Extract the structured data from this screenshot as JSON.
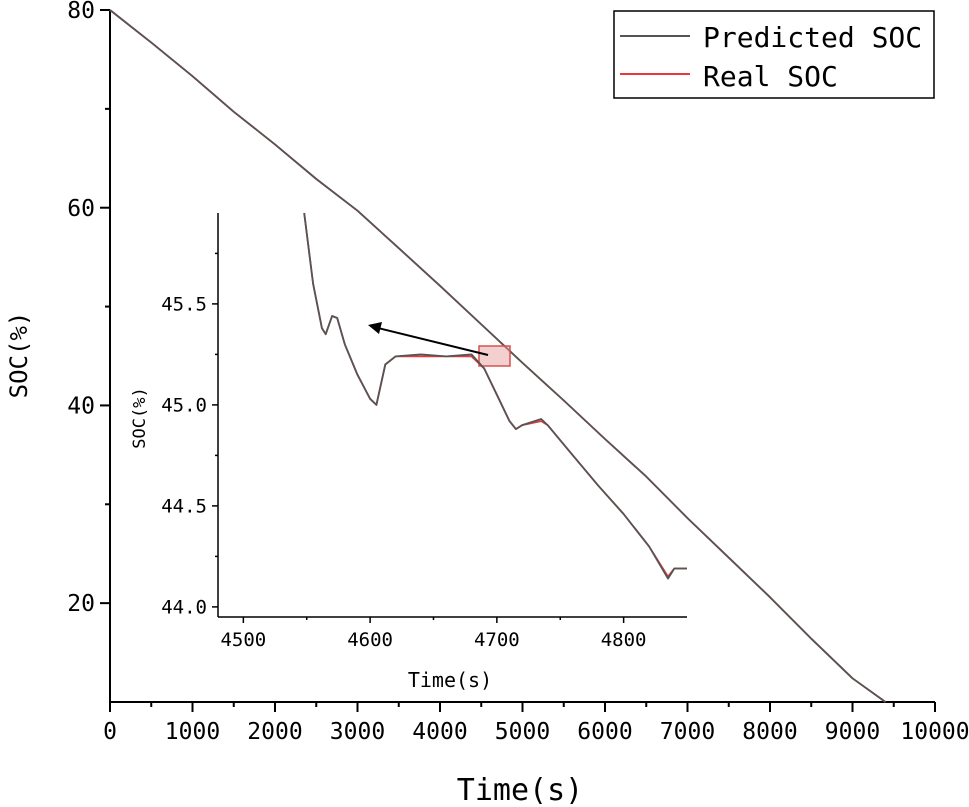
{
  "colors": {
    "predicted": "#555555",
    "real": "#e8393a",
    "axis": "#000000",
    "highlight_fill": "#e8a0a0",
    "highlight_stroke": "#d85050"
  },
  "chart_data": [
    {
      "type": "line",
      "id": "main",
      "xlabel": "Time(s)",
      "ylabel": "SOC(%)",
      "xlim": [
        0,
        10000
      ],
      "ylim": [
        10,
        80
      ],
      "x_ticks": [
        0,
        1000,
        2000,
        3000,
        4000,
        5000,
        6000,
        7000,
        8000,
        9000,
        10000
      ],
      "x_tick_labels": [
        "0",
        "1000",
        "2000",
        "3000",
        "4000",
        "5000",
        "6000",
        "7000",
        "8000",
        "9000",
        "10000"
      ],
      "y_ticks": [
        20,
        40,
        60,
        80
      ],
      "y_tick_labels": [
        "20",
        "40",
        "60",
        "80"
      ],
      "legend": {
        "position": "top-right",
        "entries": [
          "Predicted SOC",
          "Real SOC"
        ]
      },
      "series": [
        {
          "name": "Predicted SOC",
          "x": [
            0,
            500,
            1000,
            1500,
            2000,
            2500,
            3000,
            3500,
            4000,
            4500,
            5000,
            5500,
            6000,
            6500,
            7000,
            7500,
            8000,
            8500,
            9000,
            9400
          ],
          "y": [
            80,
            76.7,
            73.3,
            69.7,
            66.4,
            62.9,
            59.7,
            55.9,
            52.1,
            48.2,
            44.3,
            40.5,
            36.6,
            32.8,
            28.6,
            24.6,
            20.6,
            16.4,
            12.4,
            10
          ]
        },
        {
          "name": "Real SOC",
          "x": [
            0,
            500,
            1000,
            1500,
            2000,
            2500,
            3000,
            3500,
            4000,
            4500,
            5000,
            5500,
            6000,
            6500,
            7000,
            7500,
            8000,
            8500,
            9000,
            9400
          ],
          "y": [
            80,
            76.7,
            73.3,
            69.7,
            66.4,
            62.9,
            59.7,
            55.9,
            52.1,
            48.2,
            44.3,
            40.5,
            36.6,
            32.8,
            28.6,
            24.6,
            20.6,
            16.4,
            12.4,
            10
          ]
        }
      ],
      "zoom_region": {
        "x": [
          4450,
          4850
        ],
        "y": [
          44.1,
          45.3
        ]
      }
    },
    {
      "type": "line",
      "id": "inset",
      "xlabel": "Time(s)",
      "ylabel": "SOC(%)",
      "xlim": [
        4480,
        4850
      ],
      "ylim": [
        43.95,
        45.95
      ],
      "x_ticks": [
        4500,
        4600,
        4700,
        4800
      ],
      "x_tick_labels": [
        "4500",
        "4600",
        "4700",
        "4800"
      ],
      "y_ticks": [
        44.0,
        44.5,
        45.0,
        45.5
      ],
      "y_tick_labels": [
        "44.0",
        "44.5",
        "45.0",
        "45.5"
      ],
      "series": [
        {
          "name": "Predicted SOC",
          "x": [
            4548,
            4555,
            4562,
            4565,
            4570,
            4574,
            4580,
            4590,
            4600,
            4605,
            4612,
            4620,
            4640,
            4660,
            4680,
            4690,
            4700,
            4710,
            4715,
            4720,
            4735,
            4740,
            4760,
            4780,
            4800,
            4820,
            4835,
            4840,
            4850
          ],
          "y": [
            45.95,
            45.6,
            45.38,
            45.35,
            45.44,
            45.43,
            45.3,
            45.15,
            45.03,
            45.0,
            45.2,
            45.24,
            45.25,
            45.24,
            45.25,
            45.18,
            45.05,
            44.92,
            44.88,
            44.9,
            44.93,
            44.9,
            44.75,
            44.6,
            44.46,
            44.3,
            44.14,
            44.19,
            44.19
          ]
        },
        {
          "name": "Real SOC",
          "x": [
            4548,
            4555,
            4562,
            4565,
            4570,
            4574,
            4580,
            4590,
            4600,
            4605,
            4612,
            4620,
            4640,
            4660,
            4680,
            4690,
            4700,
            4710,
            4715,
            4720,
            4735,
            4740,
            4760,
            4780,
            4800,
            4820,
            4835,
            4840,
            4850
          ],
          "y": [
            45.95,
            45.6,
            45.38,
            45.35,
            45.44,
            45.43,
            45.3,
            45.15,
            45.03,
            45.0,
            45.2,
            45.24,
            45.24,
            45.24,
            45.24,
            45.18,
            45.05,
            44.92,
            44.88,
            44.9,
            44.92,
            44.9,
            44.75,
            44.6,
            44.46,
            44.3,
            44.15,
            44.19,
            44.19
          ]
        }
      ]
    }
  ]
}
